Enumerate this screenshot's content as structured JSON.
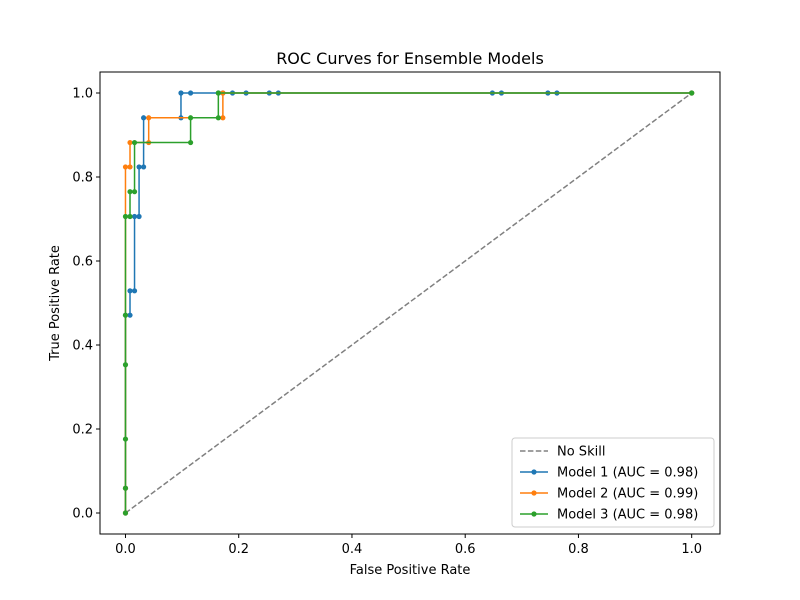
{
  "chart_data": {
    "type": "line",
    "title": "ROC Curves for Ensemble Models",
    "xlabel": "False Positive Rate",
    "ylabel": "True Positive Rate",
    "xlim": [
      -0.045,
      1.05
    ],
    "ylim": [
      -0.05,
      1.05
    ],
    "xticks": [
      0.0,
      0.2,
      0.4,
      0.6,
      0.8,
      1.0
    ],
    "yticks": [
      0.0,
      0.2,
      0.4,
      0.6,
      0.8,
      1.0
    ],
    "xtick_labels": [
      "0.0",
      "0.2",
      "0.4",
      "0.6",
      "0.8",
      "1.0"
    ],
    "ytick_labels": [
      "0.0",
      "0.2",
      "0.4",
      "0.6",
      "0.8",
      "1.0"
    ],
    "grid": false,
    "legend_position": "bottom-right",
    "series": [
      {
        "name": "No Skill",
        "color": "#808080",
        "style": "dashed",
        "marker": "none",
        "x": [
          0.0,
          1.0
        ],
        "y": [
          0.0,
          1.0
        ]
      },
      {
        "name": "Model 1 (AUC = 0.98)",
        "color": "#1f77b4",
        "style": "solid",
        "marker": "dot",
        "x": [
          0.0,
          0.0,
          0.0,
          0.008,
          0.008,
          0.016,
          0.016,
          0.024,
          0.024,
          0.032,
          0.032,
          0.098,
          0.098,
          0.115,
          0.164,
          0.172,
          0.189,
          0.213,
          0.254,
          0.27,
          0.648,
          0.664,
          0.746,
          0.762,
          1.0
        ],
        "y": [
          0.0,
          0.059,
          0.471,
          0.471,
          0.529,
          0.529,
          0.706,
          0.706,
          0.824,
          0.824,
          0.941,
          0.941,
          1.0,
          1.0,
          1.0,
          1.0,
          1.0,
          1.0,
          1.0,
          1.0,
          1.0,
          1.0,
          1.0,
          1.0,
          1.0
        ]
      },
      {
        "name": "Model 2 (AUC = 0.99)",
        "color": "#ff7f0e",
        "style": "solid",
        "marker": "dot",
        "x": [
          0.0,
          0.0,
          0.0,
          0.008,
          0.008,
          0.041,
          0.041,
          0.172,
          0.172,
          1.0
        ],
        "y": [
          0.0,
          0.059,
          0.824,
          0.824,
          0.882,
          0.882,
          0.941,
          0.941,
          1.0,
          1.0
        ]
      },
      {
        "name": "Model 3 (AUC = 0.98)",
        "color": "#2ca02c",
        "style": "solid",
        "marker": "dot",
        "x": [
          0.0,
          0.0,
          0.0,
          0.0,
          0.0,
          0.0,
          0.008,
          0.008,
          0.016,
          0.016,
          0.115,
          0.115,
          0.164,
          0.164,
          1.0
        ],
        "y": [
          0.0,
          0.059,
          0.176,
          0.353,
          0.471,
          0.706,
          0.706,
          0.765,
          0.765,
          0.882,
          0.882,
          0.941,
          0.941,
          1.0,
          1.0
        ]
      }
    ]
  }
}
